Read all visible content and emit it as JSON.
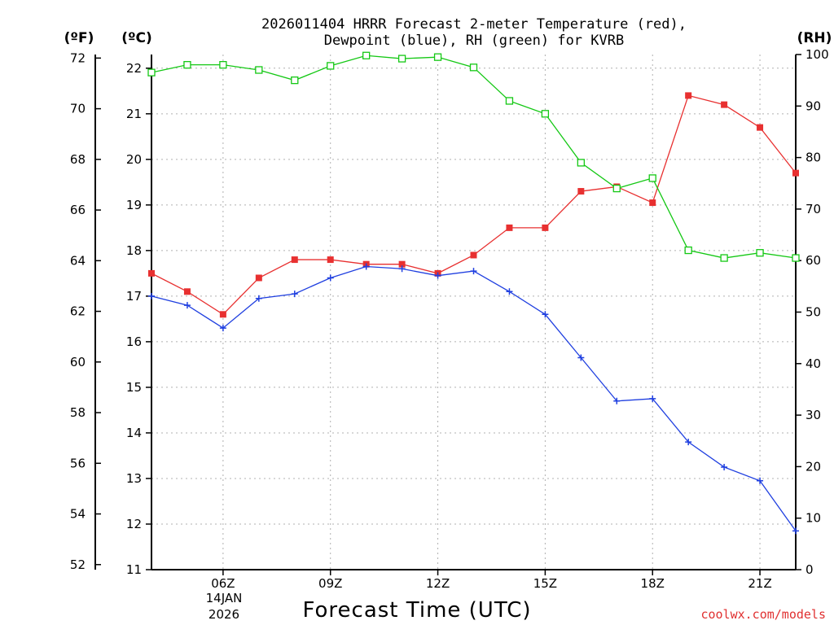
{
  "title_line1": "2026011404 HRRR Forecast 2-meter Temperature (red),",
  "title_line2": "Dewpoint (blue), RH (green) for KVRB",
  "units": {
    "fahrenheit": "(ºF)",
    "celsius": "(ºC)",
    "rh": "(RH)"
  },
  "x_axis": {
    "title": "Forecast Time (UTC)",
    "date_line1": "14JAN",
    "date_line2": "2026"
  },
  "credit": "coolwx.com/models",
  "colors": {
    "temperature": "#e83030",
    "dewpoint": "#1f3fe0",
    "rh": "#14c814",
    "axis": "#000000",
    "grid": "#b0b0b0"
  },
  "chart_data": {
    "type": "line",
    "x_unit": "UTC hour, 14 Jan 2026",
    "x": [
      4,
      5,
      6,
      7,
      8,
      9,
      10,
      11,
      12,
      13,
      14,
      15,
      16,
      17,
      18,
      19,
      20,
      21,
      22
    ],
    "xlim": [
      4,
      22
    ],
    "x_ticks": [
      6,
      9,
      12,
      15,
      18,
      21
    ],
    "x_tick_labels": [
      "06Z",
      "09Z",
      "12Z",
      "15Z",
      "18Z",
      "21Z"
    ],
    "y_left_celsius": {
      "range": [
        11,
        22.3
      ],
      "ticks": [
        11,
        12,
        13,
        14,
        15,
        16,
        17,
        18,
        19,
        20,
        21,
        22
      ]
    },
    "y_left_fahrenheit": {
      "ticks": [
        52,
        54,
        56,
        58,
        60,
        62,
        64,
        66,
        68,
        70,
        72
      ]
    },
    "y_right_rh": {
      "range": [
        0,
        100
      ],
      "ticks": [
        0,
        10,
        20,
        30,
        40,
        50,
        60,
        70,
        80,
        90,
        100
      ]
    },
    "series": [
      {
        "name": "Temperature",
        "color": "red",
        "axis": "celsius",
        "marker": "filled-square",
        "values": [
          17.5,
          17.1,
          16.6,
          17.4,
          17.8,
          17.8,
          17.7,
          17.7,
          17.5,
          17.9,
          18.5,
          18.5,
          19.3,
          19.4,
          19.05,
          21.4,
          21.2,
          20.7,
          19.7
        ]
      },
      {
        "name": "Dewpoint",
        "color": "blue",
        "axis": "celsius",
        "marker": "plus",
        "values": [
          17.0,
          16.8,
          16.3,
          16.95,
          17.05,
          17.4,
          17.65,
          17.6,
          17.45,
          17.55,
          17.1,
          16.6,
          15.65,
          14.7,
          14.75,
          13.8,
          13.25,
          12.95,
          11.85
        ]
      },
      {
        "name": "RH",
        "color": "green",
        "axis": "rh",
        "marker": "open-square",
        "values": [
          96.5,
          98,
          98,
          97,
          95,
          97.8,
          99.8,
          99.2,
          99.5,
          97.5,
          91,
          88.5,
          79,
          74,
          76,
          62,
          60.5,
          61.5,
          60.5
        ]
      }
    ]
  }
}
